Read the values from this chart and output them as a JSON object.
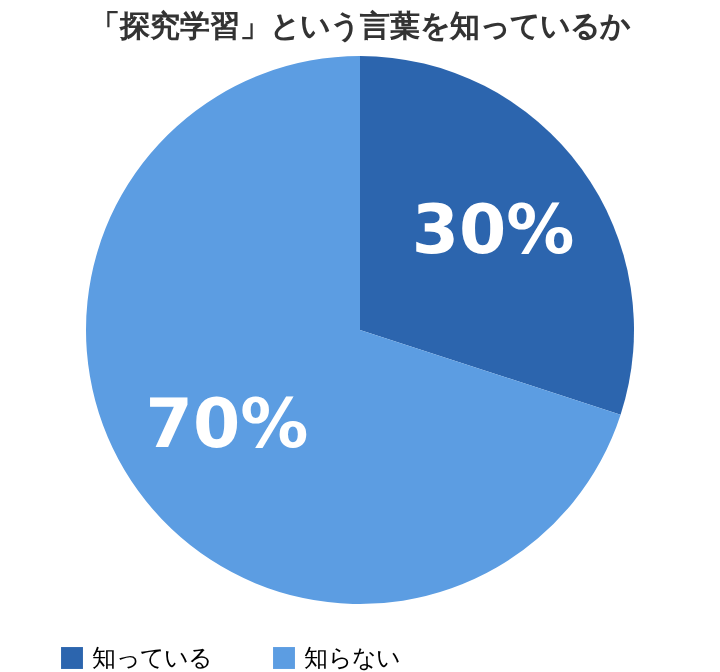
{
  "chart_data": {
    "type": "pie",
    "title": "「探究学習」という言葉を知っているか",
    "categories": [
      "知っている",
      "知らない"
    ],
    "values": [
      30,
      70
    ],
    "colors": [
      "#2c65ae",
      "#5c9de2"
    ],
    "value_labels": [
      "30%",
      "70%"
    ],
    "legend": "bottom"
  }
}
